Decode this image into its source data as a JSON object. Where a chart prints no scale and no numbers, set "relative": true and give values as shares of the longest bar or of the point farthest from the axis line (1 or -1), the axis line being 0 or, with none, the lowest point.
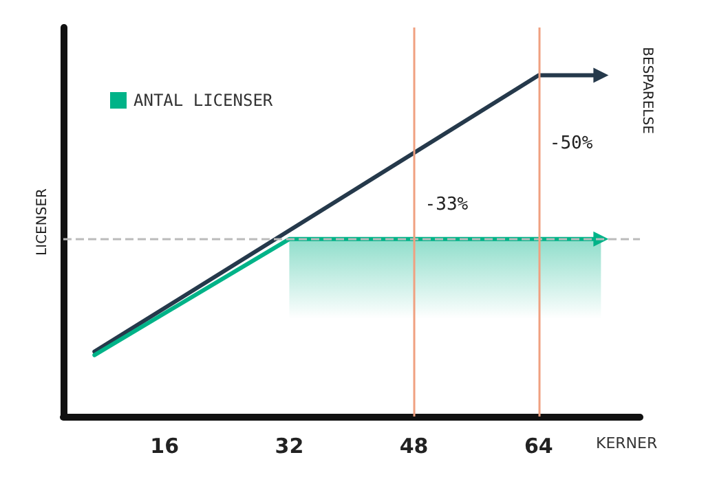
{
  "chart_data": {
    "type": "line",
    "relative": true,
    "xlabel": "KERNER",
    "ylabel": "LICENSER",
    "xlim": [
      3,
      77
    ],
    "xticks": [
      16,
      32,
      48,
      64
    ],
    "ylim": [
      0,
      1.14
    ],
    "series": [
      {
        "color": "#25394b",
        "x": [
          7,
          64,
          72
        ],
        "values": [
          0.19,
          1,
          1
        ]
      },
      {
        "name": "ANTAL LICENSER",
        "color": "#00b388",
        "x": [
          7,
          32,
          72
        ],
        "values": [
          0.18,
          0.52,
          0.52
        ]
      }
    ],
    "ref_lines": [
      {
        "axis": "y",
        "value": 0.52,
        "color": "#bbbbbb",
        "line_style": "dashed"
      },
      {
        "axis": "x",
        "value": 48,
        "color": "#f0a080",
        "line_style": "solid"
      },
      {
        "axis": "x",
        "value": 64,
        "color": "#f0a080",
        "line_style": "solid"
      }
    ],
    "bands": [
      {
        "axis": "x",
        "from": 32,
        "to": 72,
        "color": "#00b388"
      }
    ],
    "annotations": [
      "BESPARELSE",
      {
        "text": "-33%",
        "x": 48,
        "y": 0.62
      },
      {
        "text": "-50%",
        "x": 64,
        "y": 0.8
      }
    ],
    "legend": "top left",
    "grid": false,
    "marker": "none",
    "line_style": "solid"
  }
}
